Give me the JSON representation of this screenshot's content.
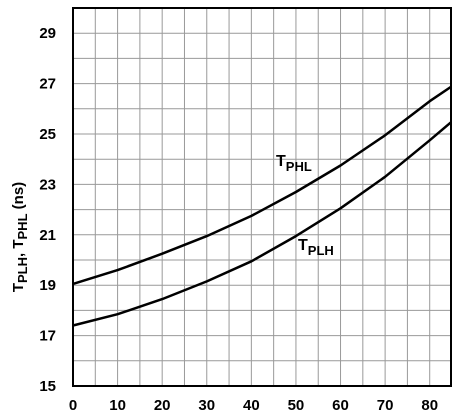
{
  "chart_data": {
    "type": "line",
    "title": "",
    "xlabel": "",
    "ylabel": {
      "t1": "T",
      "s1": "PLH",
      "sep": ", ",
      "t2": "T",
      "s2": "PHL",
      "unit": " (ns)"
    },
    "xlim": [
      0,
      85
    ],
    "ylim": [
      15,
      30
    ],
    "x_ticks": [
      "0",
      "10",
      "20",
      "30",
      "40",
      "50",
      "60",
      "70",
      "80"
    ],
    "y_ticks": [
      "15",
      "17",
      "19",
      "21",
      "23",
      "25",
      "27",
      "29"
    ],
    "grid": true,
    "series": [
      {
        "name": "TPHL",
        "label": {
          "main": "T",
          "sub": "PHL"
        },
        "x": [
          0,
          10,
          20,
          30,
          40,
          50,
          60,
          70,
          80,
          85
        ],
        "y": [
          19.05,
          19.6,
          20.25,
          20.95,
          21.75,
          22.7,
          23.75,
          24.95,
          26.3,
          26.9
        ]
      },
      {
        "name": "TPLH",
        "label": {
          "main": "T",
          "sub": "PLH"
        },
        "x": [
          0,
          10,
          20,
          30,
          40,
          50,
          60,
          70,
          80,
          85
        ],
        "y": [
          17.4,
          17.85,
          18.45,
          19.15,
          19.95,
          20.95,
          22.05,
          23.3,
          24.75,
          25.5
        ]
      }
    ]
  }
}
